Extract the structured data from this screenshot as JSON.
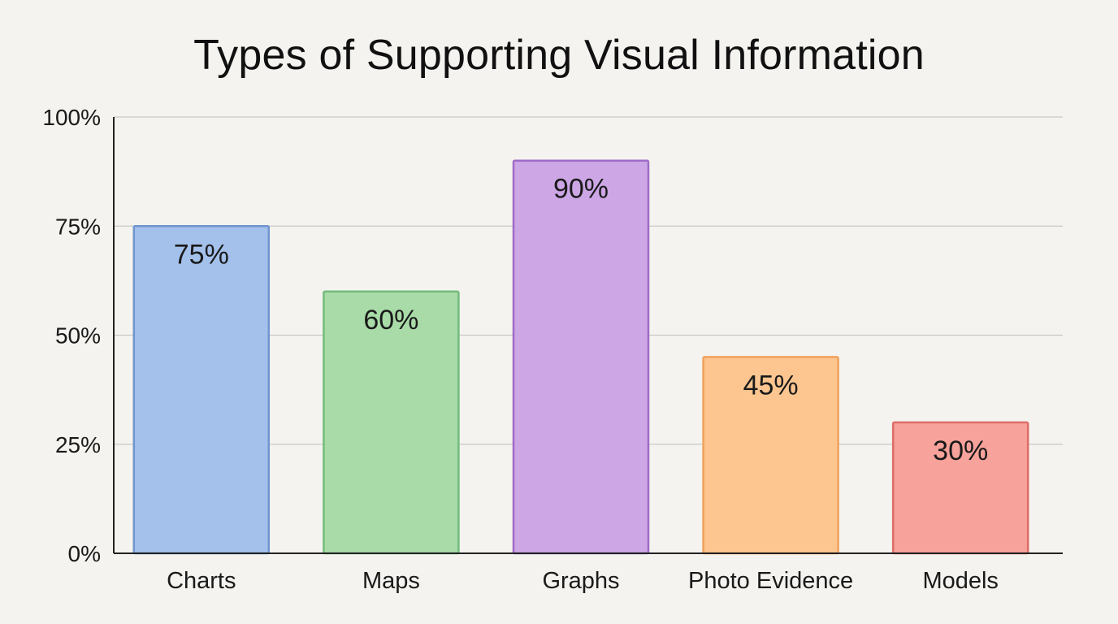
{
  "chart_data": {
    "type": "bar",
    "title": "Types of Supporting Visual Information",
    "categories": [
      "Charts",
      "Maps",
      "Graphs",
      "Photo Evidence",
      "Models"
    ],
    "values": [
      75,
      60,
      90,
      45,
      30
    ],
    "data_labels": [
      "75%",
      "60%",
      "90%",
      "45%",
      "30%"
    ],
    "ylim": [
      0,
      100
    ],
    "yticks": [
      0,
      25,
      50,
      75,
      100
    ],
    "ytick_labels": [
      "0%",
      "25%",
      "50%",
      "75%",
      "100%"
    ],
    "xlabel": "",
    "ylabel": "",
    "grid": true,
    "legend": false,
    "colors": {
      "fills": [
        "#a4c1ec",
        "#a8dba8",
        "#cda6e6",
        "#fdc690",
        "#f7a29a"
      ],
      "strokes": [
        "#6f95cf",
        "#74bb7d",
        "#a06bc7",
        "#f0a25a",
        "#de6c66"
      ],
      "gridline": "#c8c8c8",
      "axis": "#222222"
    }
  }
}
